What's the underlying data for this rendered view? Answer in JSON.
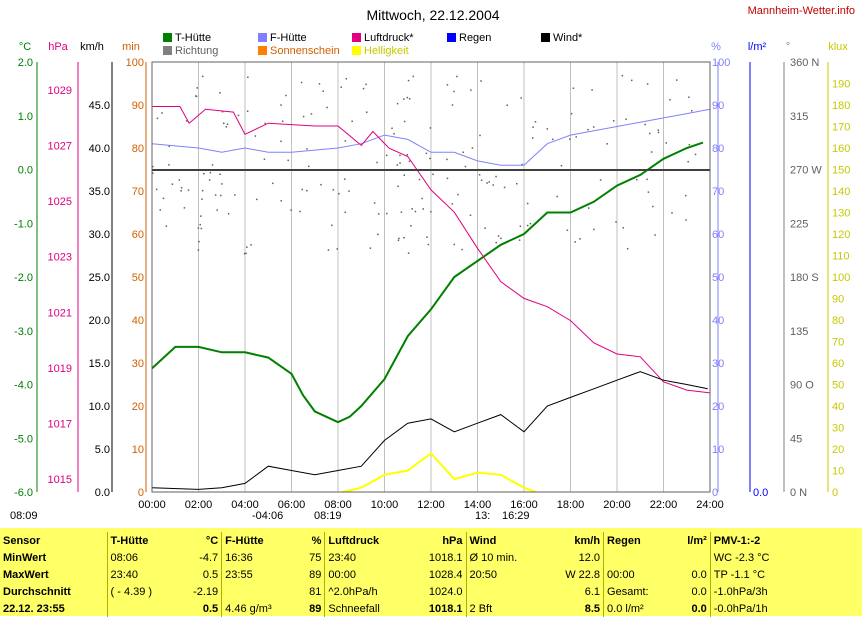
{
  "header": {
    "title": "Mittwoch, 22.12.2004",
    "site": "Mannheim-Wetter.info"
  },
  "legend": [
    {
      "label": "T-Hütte",
      "color": "#008000"
    },
    {
      "label": "F-Hütte",
      "color": "#8080ff"
    },
    {
      "label": "Luftdruck*",
      "color": "#e0007f"
    },
    {
      "label": "Regen",
      "color": "#0000ff"
    },
    {
      "label": "Wind*",
      "color": "#000000"
    },
    {
      "label": "Richtung",
      "color": "#808080"
    },
    {
      "label": "Sonnenschein",
      "color": "#ff8000"
    },
    {
      "label": "Helligkeit",
      "color": "#ffff00"
    }
  ],
  "axis_units": {
    "temp": "°C",
    "pressure": "hPa",
    "wind": "km/h",
    "sun": "min",
    "humidity": "%",
    "rain": "l/m²",
    "direction": "°",
    "lux": "klux"
  },
  "axes": {
    "temp_ticks": [
      "2.0",
      "1.0",
      "0.0",
      "-1.0",
      "-2.0",
      "-3.0",
      "-4.0",
      "-5.0",
      "-6.0"
    ],
    "pressure_ticks": [
      "1029",
      "1027",
      "1025",
      "1023",
      "1021",
      "1019",
      "1017",
      "1015"
    ],
    "wind_ticks": [
      "45.0",
      "40.0",
      "35.0",
      "30.0",
      "25.0",
      "20.0",
      "15.0",
      "10.0",
      "5.0",
      "0.0"
    ],
    "sun_ticks": [
      "100",
      "90",
      "80",
      "70",
      "60",
      "50",
      "40",
      "30",
      "20",
      "10",
      "0"
    ],
    "hum_ticks": [
      "100",
      "90",
      "80",
      "70",
      "60",
      "50",
      "40",
      "30",
      "20",
      "10",
      "0"
    ],
    "rain_ticks": [
      "0.0"
    ],
    "dir_ticks": [
      "360 N",
      "315",
      "270 W",
      "225",
      "180 S",
      "135",
      "90 O",
      "45",
      "0 N"
    ],
    "lux_ticks": [
      "190",
      "180",
      "170",
      "160",
      "150",
      "140",
      "130",
      "120",
      "110",
      "100",
      "90",
      "80",
      "70",
      "60",
      "50",
      "40",
      "30",
      "20",
      "10",
      "0"
    ],
    "time_ticks": [
      "00:00",
      "02:00",
      "04:00",
      "06:00",
      "08:00",
      "10:00",
      "12:00",
      "14:00",
      "16:00",
      "18:00",
      "20:00",
      "22:00",
      "24:00"
    ]
  },
  "timebar": {
    "sunrise": "08:09",
    "t1": "-04:06",
    "t2": "08:19",
    "t3": "13:",
    "t4": "16:29"
  },
  "chart_data": {
    "type": "line",
    "title": "Mittwoch, 22.12.2004",
    "x_unit": "hours",
    "series": [
      {
        "name": "T-Hütte",
        "unit": "°C",
        "points": [
          [
            0,
            -3.7
          ],
          [
            1,
            -3.3
          ],
          [
            2,
            -3.3
          ],
          [
            3,
            -3.4
          ],
          [
            4,
            -3.4
          ],
          [
            5,
            -3.5
          ],
          [
            6,
            -3.8
          ],
          [
            6.5,
            -4.2
          ],
          [
            7,
            -4.5
          ],
          [
            7.5,
            -4.6
          ],
          [
            8,
            -4.7
          ],
          [
            8.5,
            -4.6
          ],
          [
            9,
            -4.4
          ],
          [
            10,
            -3.9
          ],
          [
            11,
            -3.1
          ],
          [
            12,
            -2.6
          ],
          [
            13,
            -2.0
          ],
          [
            14,
            -1.7
          ],
          [
            15,
            -1.4
          ],
          [
            16,
            -1.2
          ],
          [
            17,
            -0.8
          ],
          [
            18,
            -0.8
          ],
          [
            19,
            -0.6
          ],
          [
            20,
            -0.3
          ],
          [
            21,
            -0.1
          ],
          [
            22,
            0.2
          ],
          [
            23,
            0.4
          ],
          [
            23.7,
            0.5
          ]
        ]
      },
      {
        "name": "F-Hütte",
        "unit": "%",
        "points": [
          [
            0,
            81
          ],
          [
            2,
            80
          ],
          [
            3,
            79
          ],
          [
            4,
            80
          ],
          [
            5,
            79
          ],
          [
            6,
            79
          ],
          [
            8,
            80
          ],
          [
            9,
            81
          ],
          [
            10,
            83
          ],
          [
            11,
            82
          ],
          [
            12,
            79
          ],
          [
            13,
            79
          ],
          [
            14,
            77
          ],
          [
            15,
            76
          ],
          [
            16,
            76
          ],
          [
            17,
            81
          ],
          [
            18,
            83
          ],
          [
            19,
            84
          ],
          [
            20,
            85
          ],
          [
            21,
            86
          ],
          [
            22,
            87
          ],
          [
            23,
            88
          ],
          [
            24,
            89
          ]
        ]
      },
      {
        "name": "Luftdruck*",
        "unit": "hPa",
        "points": [
          [
            0,
            1028.4
          ],
          [
            1.2,
            1028.4
          ],
          [
            1.6,
            1027.8
          ],
          [
            2.3,
            1028.3
          ],
          [
            3.5,
            1028.2
          ],
          [
            4,
            1027.4
          ],
          [
            5,
            1027.8
          ],
          [
            7,
            1027.7
          ],
          [
            8,
            1027.7
          ],
          [
            9,
            1027.0
          ],
          [
            9.5,
            1027.5
          ],
          [
            10.2,
            1026.9
          ],
          [
            11,
            1026.6
          ],
          [
            12,
            1025.4
          ],
          [
            13,
            1024.6
          ],
          [
            14,
            1023.3
          ],
          [
            15,
            1022.1
          ],
          [
            16,
            1021.5
          ],
          [
            17,
            1021.2
          ],
          [
            18,
            1020.7
          ],
          [
            19,
            1019.9
          ],
          [
            20,
            1019.5
          ],
          [
            21,
            1019.4
          ],
          [
            22,
            1018.5
          ],
          [
            23,
            1018.2
          ],
          [
            24,
            1018.1
          ]
        ]
      },
      {
        "name": "Wind*",
        "unit": "km/h",
        "points": [
          [
            0,
            0.5
          ],
          [
            2,
            0.3
          ],
          [
            3,
            0.5
          ],
          [
            4,
            1.0
          ],
          [
            5,
            3.0
          ],
          [
            6,
            2.5
          ],
          [
            7,
            2.0
          ],
          [
            8,
            2.5
          ],
          [
            9,
            3.0
          ],
          [
            10,
            6.0
          ],
          [
            11,
            8.0
          ],
          [
            12,
            8.5
          ],
          [
            13,
            7.0
          ],
          [
            14,
            8.0
          ],
          [
            15,
            9.0
          ],
          [
            16,
            7.0
          ],
          [
            17,
            10.0
          ],
          [
            18,
            11.0
          ],
          [
            19,
            12.0
          ],
          [
            20,
            13.0
          ],
          [
            21,
            14.0
          ],
          [
            22,
            13.0
          ],
          [
            23,
            12.5
          ],
          [
            23.9,
            12.0
          ]
        ]
      },
      {
        "name": "Helligkeit",
        "unit": "klux",
        "points": [
          [
            8.2,
            0
          ],
          [
            9,
            2
          ],
          [
            10,
            8
          ],
          [
            11,
            10
          ],
          [
            12,
            18
          ],
          [
            13,
            6
          ],
          [
            14,
            9
          ],
          [
            15,
            8
          ],
          [
            16,
            2
          ],
          [
            16.5,
            0
          ]
        ]
      }
    ],
    "rain_total": "0.0"
  },
  "panel": {
    "rows": [
      [
        "Sensor",
        "T-Hütte",
        "°C",
        "F-Hütte",
        "%",
        "Luftdruck",
        "hPa",
        "Wind",
        "km/h",
        "Regen",
        "l/m²",
        "PMV-1:-2"
      ],
      [
        "MinWert",
        "08:06",
        "-4.7",
        "16:36",
        "75",
        "23:40",
        "1018.1",
        "Ø 10 min.",
        "12.0",
        "",
        "",
        "WC -2.3 °C"
      ],
      [
        "MaxWert",
        "23:40",
        "0.5",
        "23:55",
        "89",
        "00:00",
        "1028.4",
        "20:50",
        "W 22.8",
        "00:00",
        "0.0",
        "TP -1.1 °C"
      ],
      [
        "Durchschnitt",
        "( - 4.39 )",
        "-2.19",
        "",
        "81",
        "^2.0hPa/h",
        "1024.0",
        "",
        "6.1",
        "Gesamt:",
        "0.0",
        "-1.0hPa/3h"
      ],
      [
        "22.12. 23:55",
        "",
        "0.5",
        "4.46 g/m³",
        "89",
        "Schneefall",
        "1018.1",
        "2 Bft",
        "8.5",
        "0.0 l/m²",
        "0.0",
        "-0.0hPa/1h"
      ]
    ]
  }
}
